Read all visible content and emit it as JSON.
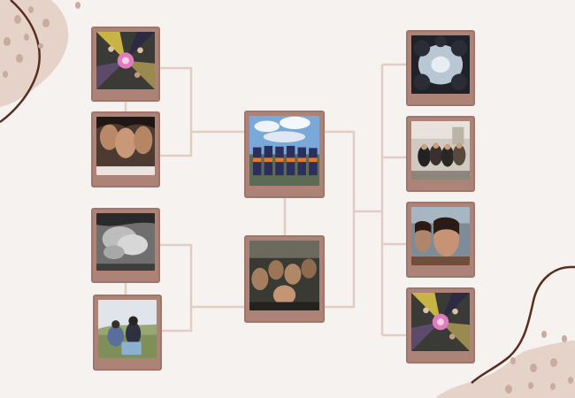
{
  "colors": {
    "background": "#f5f2f0",
    "frame": "#ad8377",
    "connector": "#e2cdc3",
    "blob": "#e5d3c9",
    "line_art": "#5a2e1f",
    "dots": "#c9ab9f"
  },
  "bracket": {
    "round_1": [
      {
        "name": "photo-hands-circle-top"
      },
      {
        "name": "photo-three-girls-selfie"
      },
      {
        "name": "photo-hands-stacked-bw"
      },
      {
        "name": "photo-friends-outdoor-hills"
      }
    ],
    "semifinal": [
      {
        "name": "photo-team-cheer-group"
      },
      {
        "name": "photo-group-selfie-dark"
      }
    ],
    "final": [
      {
        "name": "photo-hands-circle-bw-overhead"
      },
      {
        "name": "photo-friends-indoor-group"
      },
      {
        "name": "photo-two-girls-selfie"
      },
      {
        "name": "photo-hands-circle-colorful"
      }
    ]
  }
}
